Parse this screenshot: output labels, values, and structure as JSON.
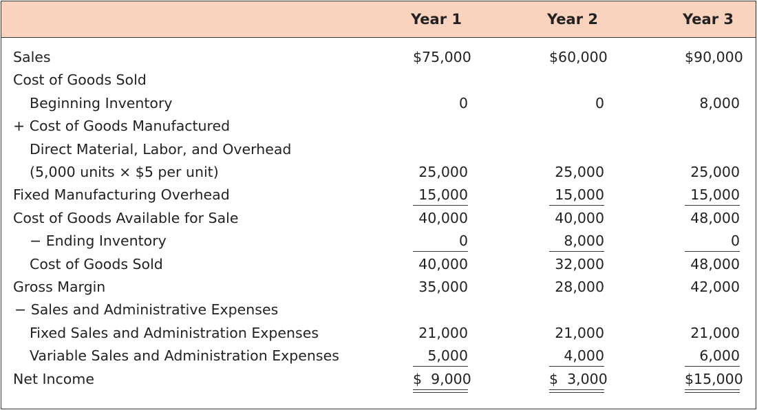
{
  "table": {
    "header": [
      "Year 1",
      "Year 2",
      "Year 3"
    ],
    "rows": [
      {
        "label": "Sales",
        "cells": [
          "$75,000",
          "$60,000",
          "$90,000"
        ]
      },
      {
        "label": "Cost of Goods Sold",
        "cells": [
          "",
          "",
          ""
        ]
      },
      {
        "label": "Beginning Inventory",
        "cells": [
          "0",
          "0",
          "8,000"
        ]
      },
      {
        "label": "+ Cost of Goods Manufactured",
        "cells": [
          "",
          "",
          ""
        ]
      },
      {
        "label": "Direct Material, Labor, and Overhead",
        "cells": [
          "",
          "",
          ""
        ]
      },
      {
        "label": "(5,000 units × $5 per unit)",
        "cells": [
          "25,000",
          "25,000",
          "25,000"
        ]
      },
      {
        "label": "Fixed Manufacturing Overhead",
        "cells": [
          "15,000",
          "15,000",
          "15,000"
        ]
      },
      {
        "label": "Cost of Goods Available for Sale",
        "cells": [
          "40,000",
          "40,000",
          "48,000"
        ]
      },
      {
        "label": "− Ending Inventory",
        "cells": [
          "0",
          "8,000",
          "0"
        ]
      },
      {
        "label": "Cost of Goods Sold",
        "cells": [
          "40,000",
          "32,000",
          "48,000"
        ]
      },
      {
        "label": "Gross Margin",
        "cells": [
          "35,000",
          "28,000",
          "42,000"
        ]
      },
      {
        "label": "− Sales and Administrative Expenses",
        "cells": [
          "",
          "",
          ""
        ]
      },
      {
        "label": "Fixed Sales and Administration Expenses",
        "cells": [
          "21,000",
          "21,000",
          "21,000"
        ]
      },
      {
        "label": "Variable Sales and Administration Expenses",
        "cells": [
          "5,000",
          "4,000",
          "6,000"
        ]
      },
      {
        "label": "Net Income",
        "cells": [
          "$  9,000",
          "$  3,000",
          "$15,000"
        ]
      }
    ]
  }
}
